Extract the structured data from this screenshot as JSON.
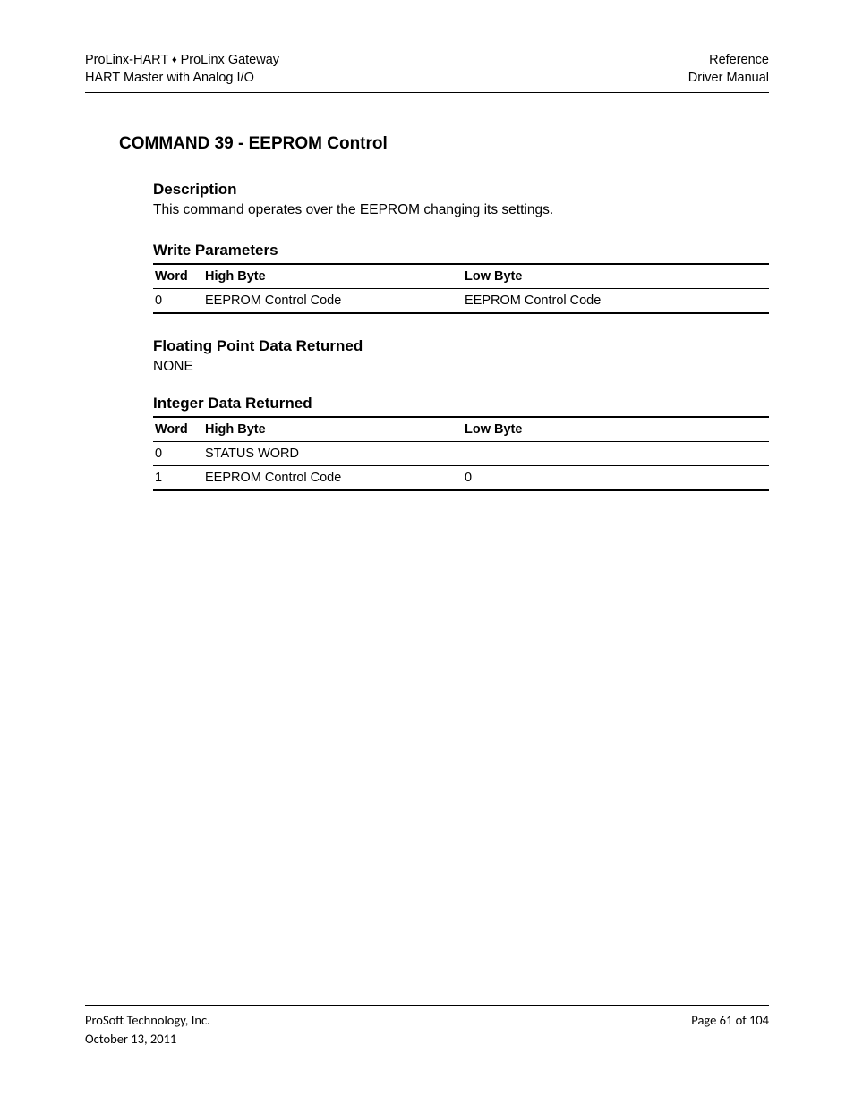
{
  "header": {
    "left_line1_a": "ProLinx-HART ",
    "left_line1_b": " ProLinx Gateway",
    "left_line2": "HART Master with Analog I/O",
    "right_line1": "Reference",
    "right_line2": "Driver Manual"
  },
  "title": "COMMAND 39 - EEPROM Control",
  "description": {
    "heading": "Description",
    "text": "This command operates over the EEPROM changing its settings."
  },
  "write_params": {
    "heading": "Write Parameters",
    "columns": [
      "Word",
      "High Byte",
      "Low Byte"
    ],
    "rows": [
      [
        "0",
        "EEPROM Control Code",
        "EEPROM Control Code"
      ]
    ]
  },
  "float_data": {
    "heading": "Floating Point Data Returned",
    "text": "NONE"
  },
  "int_data": {
    "heading": "Integer Data Returned",
    "columns": [
      "Word",
      "High Byte",
      "Low Byte"
    ],
    "rows": [
      [
        "0",
        "STATUS WORD",
        ""
      ],
      [
        "1",
        "EEPROM Control Code",
        "0"
      ]
    ]
  },
  "footer": {
    "left_line1": "ProSoft Technology, Inc.",
    "left_line2": "October 13, 2011",
    "right_line1": "Page 61 of 104"
  }
}
